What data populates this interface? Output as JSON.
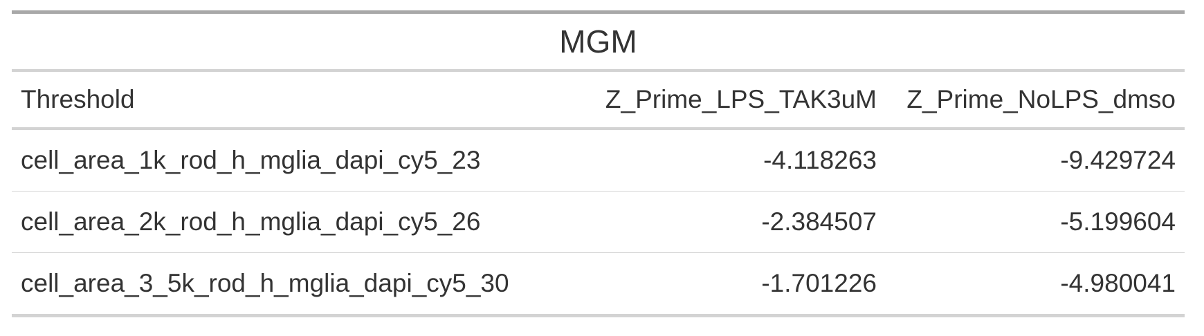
{
  "table": {
    "title": "MGM",
    "columns": [
      "Threshold",
      "Z_Prime_LPS_TAK3uM",
      "Z_Prime_NoLPS_dmso"
    ],
    "rows": [
      [
        "cell_area_1k_rod_h_mglia_dapi_cy5_23",
        "-4.118263",
        "-9.429724"
      ],
      [
        "cell_area_2k_rod_h_mglia_dapi_cy5_26",
        "-2.384507",
        "-5.199604"
      ],
      [
        "cell_area_3_5k_rod_h_mglia_dapi_cy5_30",
        "-1.701226",
        "-4.980041"
      ]
    ]
  }
}
